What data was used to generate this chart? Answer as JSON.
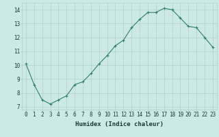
{
  "x": [
    0,
    1,
    2,
    3,
    4,
    5,
    6,
    7,
    8,
    9,
    10,
    11,
    12,
    13,
    14,
    15,
    16,
    17,
    18,
    19,
    20,
    21,
    22,
    23
  ],
  "y": [
    10.1,
    8.6,
    7.5,
    7.2,
    7.5,
    7.8,
    8.6,
    8.8,
    9.4,
    10.1,
    10.7,
    11.4,
    11.8,
    12.7,
    13.3,
    13.8,
    13.8,
    14.1,
    14.0,
    13.4,
    12.8,
    12.7,
    12.0,
    11.3
  ],
  "line_color": "#2e7d6e",
  "marker": "+",
  "marker_size": 3,
  "bg_color": "#cce9e5",
  "grid_color": "#b0d0cc",
  "xlabel": "Humidex (Indice chaleur)",
  "ylim": [
    6.8,
    14.5
  ],
  "xlim": [
    -0.5,
    23.5
  ],
  "yticks": [
    7,
    8,
    9,
    10,
    11,
    12,
    13,
    14
  ],
  "xticks": [
    0,
    1,
    2,
    3,
    4,
    5,
    6,
    7,
    8,
    9,
    10,
    11,
    12,
    13,
    14,
    15,
    16,
    17,
    18,
    19,
    20,
    21,
    22,
    23
  ],
  "text_color": "#1a3a35",
  "label_fontsize": 6.5,
  "tick_fontsize": 5.5
}
